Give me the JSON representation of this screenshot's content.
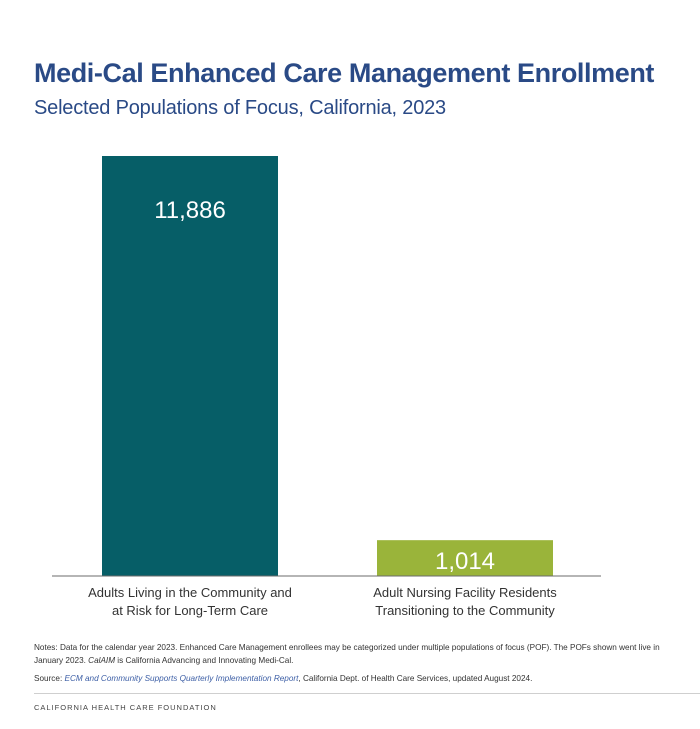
{
  "chart_data": {
    "type": "bar",
    "title": "Medi-Cal Enhanced Care Management Enrollment",
    "subtitle": "Selected Populations of Focus, California, 2023",
    "categories": [
      [
        "Adults Living in the Community and",
        "at Risk for Long-Term Care"
      ],
      [
        "Adult Nursing Facility Residents",
        "Transitioning to the Community"
      ]
    ],
    "values": [
      11886,
      1014
    ],
    "value_labels": [
      "11,886",
      "1,014"
    ],
    "colors": [
      "#065e67",
      "#9ab43a"
    ],
    "ylim": [
      0,
      11886
    ],
    "grid": false
  },
  "notes": {
    "part1": "Notes: Data for the calendar year 2023. Enhanced Care Management enrollees may be categorized under multiple populations of focus (POF). The POFs shown went live in January 2023. ",
    "calaim": "CalAIM",
    "part2": " is California Advancing and Innovating Medi-Cal."
  },
  "source": {
    "prefix": "Source: ",
    "link": "ECM and Community Supports Quarterly Implementation Report",
    "suffix": ", California Dept. of Health Care Services, updated August 2024."
  },
  "footer": "CALIFORNIA HEALTH CARE FOUNDATION"
}
